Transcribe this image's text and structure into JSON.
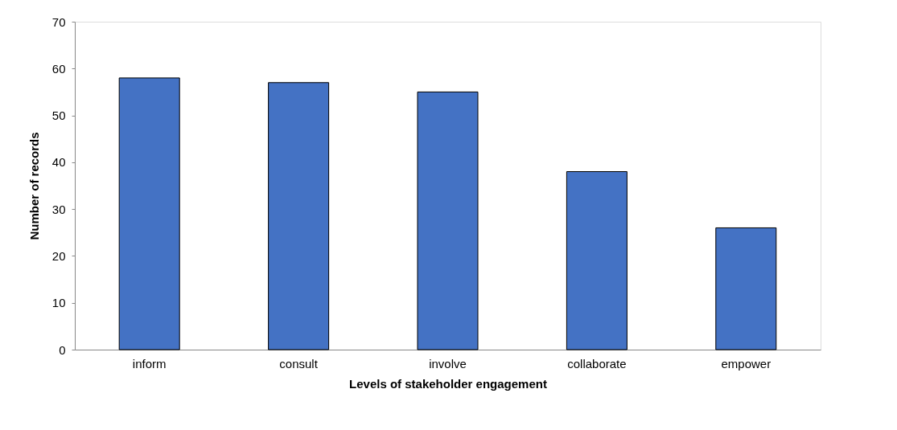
{
  "chart_data": {
    "type": "bar",
    "xlabel": "Levels of stakeholder engagement",
    "ylabel": "Number of records",
    "categories": [
      "inform",
      "consult",
      "involve",
      "collaborate",
      "empower"
    ],
    "values": [
      58,
      57,
      55,
      38,
      26
    ],
    "color": "#4472c4",
    "ylim": [
      0,
      70
    ],
    "yticks": [
      0,
      10,
      20,
      30,
      40,
      50,
      60,
      70
    ],
    "grid": false
  }
}
